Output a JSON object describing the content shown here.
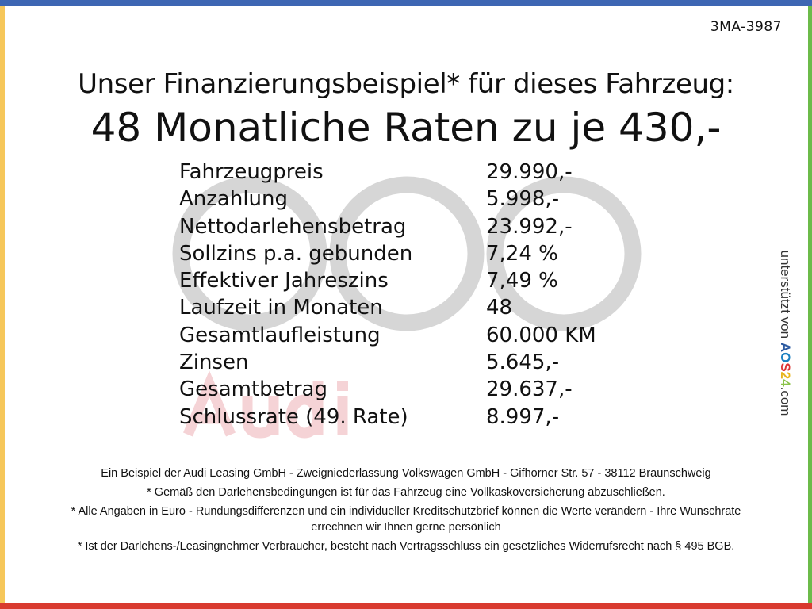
{
  "colors": {
    "top": "#3d66b3",
    "left": "#f6c75a",
    "right": "#6cbb4a",
    "bottom": "#d93a2f"
  },
  "code": "3MA-3987",
  "title_line1": "Unser Finanzierungsbeispiel* für dieses Fahrzeug:",
  "title_line2": "48 Monatliche Raten zu je 430,-",
  "watermark": "Audi",
  "rows": [
    {
      "label": "Fahrzeugpreis",
      "value": "29.990,-"
    },
    {
      "label": "Anzahlung",
      "value": "5.998,-"
    },
    {
      "label": "Nettodarlehensbetrag",
      "value": "23.992,-"
    },
    {
      "label": "Sollzins p.a. gebunden",
      "value": "7,24 %"
    },
    {
      "label": "Effektiver Jahreszins",
      "value": "7,49 %"
    },
    {
      "label": "Laufzeit in Monaten",
      "value": "48"
    },
    {
      "label": "Gesamtlaufleistung",
      "value": "60.000 KM"
    },
    {
      "label": "Zinsen",
      "value": "5.645,-"
    },
    {
      "label": "Gesamtbetrag",
      "value": "29.637,-"
    },
    {
      "label": "Schlussrate (49. Rate)",
      "value": "8.997,-"
    }
  ],
  "side": {
    "prefix": "unterstützt von",
    "brand": [
      "A",
      "O",
      "S",
      "2",
      "4"
    ],
    "suffix": ".com"
  },
  "footer": [
    "Ein Beispiel der Audi Leasing GmbH - Zweigniederlassung Volkswagen GmbH - Gifhorner Str. 57 - 38112 Braunschweig",
    "* Gemäß den Darlehensbedingungen ist für das Fahrzeug eine Vollkaskoversicherung abzuschließen.",
    "* Alle Angaben in Euro - Rundungsdifferenzen und ein individueller Kreditschutzbrief können die Werte verändern - Ihre Wunschrate errechnen wir Ihnen gerne persönlich",
    "* Ist der Darlehens-/Leasingnehmer Verbraucher, besteht nach Vertragsschluss ein gesetzliches Widerrufsrecht nach § 495 BGB."
  ]
}
